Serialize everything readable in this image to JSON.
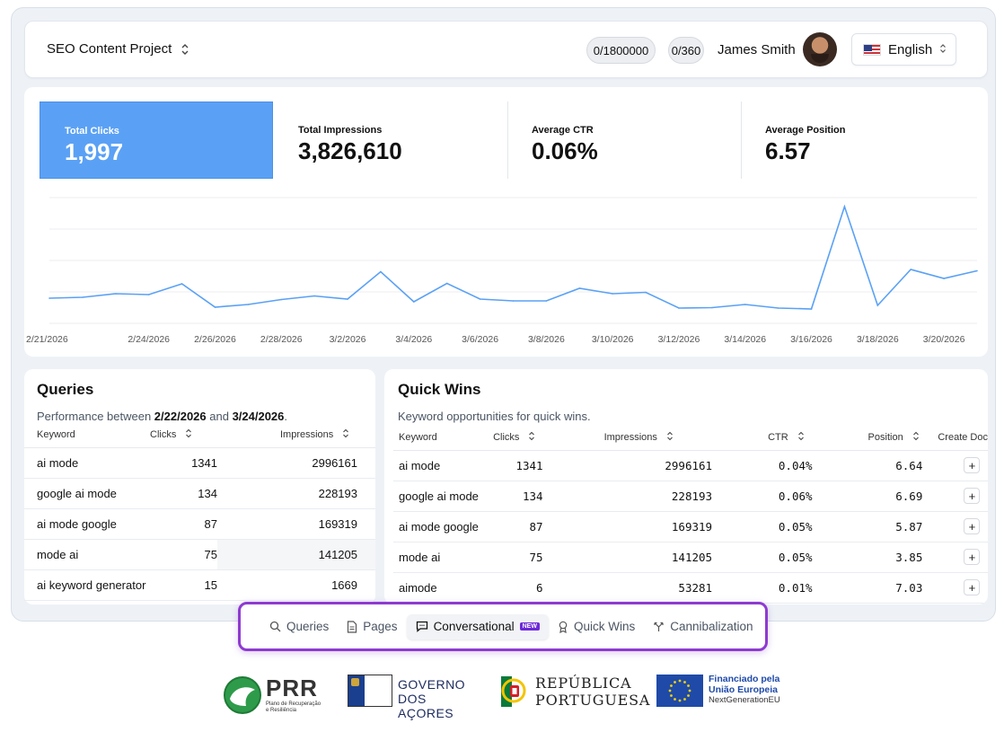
{
  "header": {
    "project": "SEO Content Project",
    "quota1": "0/1800000",
    "quota2": "0/360",
    "user": "James Smith",
    "language": "English"
  },
  "stats": [
    {
      "label": "Total Clicks",
      "value": "1,997"
    },
    {
      "label": "Total Impressions",
      "value": "3,826,610"
    },
    {
      "label": "Average CTR",
      "value": "0.06%"
    },
    {
      "label": "Average Position",
      "value": "6.57"
    }
  ],
  "chart_data": {
    "type": "line",
    "x": [
      "2/21/2026",
      "2/22/2026",
      "2/23/2026",
      "2/24/2026",
      "2/25/2026",
      "2/26/2026",
      "2/27/2026",
      "2/28/2026",
      "3/1/2026",
      "3/2/2026",
      "3/3/2026",
      "3/4/2026",
      "3/5/2026",
      "3/6/2026",
      "3/7/2026",
      "3/8/2026",
      "3/9/2026",
      "3/10/2026",
      "3/11/2026",
      "3/12/2026",
      "3/13/2026",
      "3/14/2026",
      "3/15/2026",
      "3/16/2026",
      "3/17/2026",
      "3/18/2026",
      "3/19/2026",
      "3/20/2026",
      "3/21/2026"
    ],
    "tick_labels": [
      "2/21/2026",
      "2/24/2026",
      "2/26/2026",
      "2/28/2026",
      "3/2/2026",
      "3/4/2026",
      "3/6/2026",
      "3/8/2026",
      "3/10/2026",
      "3/12/2026",
      "3/14/2026",
      "3/16/2026",
      "3/18/2026",
      "3/20/2026"
    ],
    "values": [
      56,
      58,
      66,
      64,
      88,
      36,
      42,
      53,
      61,
      54,
      115,
      48,
      89,
      54,
      50,
      50,
      78,
      66,
      69,
      34,
      35,
      42,
      34,
      32,
      260,
      40,
      120,
      100,
      117
    ],
    "ylim": [
      0,
      280
    ],
    "grid": true,
    "color": "#5aa1f5"
  },
  "queries": {
    "title": "Queries",
    "subtitle_prefix": "Performance between ",
    "date_from": "2/22/2026",
    "subtitle_mid": " and ",
    "date_to": "3/24/2026",
    "subtitle_end": ".",
    "columns": [
      "Keyword",
      "Clicks",
      "Impressions"
    ],
    "rows": [
      [
        "ai mode",
        "1341",
        "2996161"
      ],
      [
        "google ai mode",
        "134",
        "228193"
      ],
      [
        "ai mode google",
        "87",
        "169319"
      ],
      [
        "mode ai",
        "75",
        "141205"
      ],
      [
        "ai keyword generator",
        "15",
        "1669"
      ]
    ]
  },
  "quickwins": {
    "title": "Quick Wins",
    "subtitle": "Keyword opportunities for quick wins.",
    "columns": [
      "Keyword",
      "Clicks",
      "Impressions",
      "CTR",
      "Position",
      "Create Doc"
    ],
    "rows": [
      [
        "ai mode",
        "1341",
        "2996161",
        "0.04%",
        "6.64"
      ],
      [
        "google ai mode",
        "134",
        "228193",
        "0.06%",
        "6.69"
      ],
      [
        "ai mode google",
        "87",
        "169319",
        "0.05%",
        "5.87"
      ],
      [
        "mode ai",
        "75",
        "141205",
        "0.05%",
        "3.85"
      ],
      [
        "aimode",
        "6",
        "53281",
        "0.01%",
        "7.03"
      ]
    ],
    "create_label": "+"
  },
  "nav": {
    "items": [
      "Queries",
      "Pages",
      "Conversational",
      "Quick Wins",
      "Cannibalization"
    ],
    "badge": "NEW",
    "active": "Conversational"
  },
  "logos": {
    "prr": "PRR",
    "prr_sub1": "Plano de Recuperação",
    "prr_sub2": "e Resiliência",
    "gov1": "GOVERNO",
    "gov2": "DOS AÇORES",
    "rep1": "REPÚBLICA",
    "rep2": "PORTUGUESA",
    "eu1": "Financiado pela",
    "eu2": "União Europeia",
    "eu3": "NextGenerationEU"
  }
}
